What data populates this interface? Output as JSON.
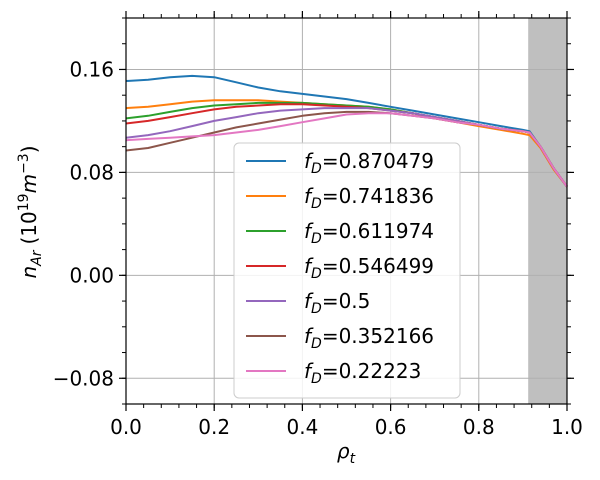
{
  "chart_data": {
    "type": "line",
    "xlabel": "ρ",
    "xlabel_sub": "t",
    "ylabel_main": "n",
    "ylabel_sub": "Ar",
    "ylabel_unit": "(10",
    "ylabel_exp": "19",
    "ylabel_mid": "m",
    "ylabel_exp2": "−3",
    "ylabel_close": ")",
    "xlim": [
      0.0,
      1.0
    ],
    "ylim": [
      -0.1,
      0.2
    ],
    "x_ticks": [
      0.0,
      0.2,
      0.4,
      0.6,
      0.8,
      1.0
    ],
    "x_tick_labels": [
      "0.0",
      "0.2",
      "0.4",
      "0.6",
      "0.8",
      "1.0"
    ],
    "y_ticks": [
      -0.08,
      0.0,
      0.08,
      0.16
    ],
    "y_tick_labels": [
      "−0.08",
      "0.00",
      "0.08",
      "0.16"
    ],
    "grid": true,
    "legend_position": "center",
    "shaded_region": {
      "x_start": 0.912,
      "x_end": 1.0,
      "color": "#bfbfbf"
    },
    "legend_prefix": "f",
    "legend_sub": "D",
    "series": [
      {
        "label": "=0.870479",
        "color": "#1f77b4",
        "x": [
          0.0,
          0.05,
          0.1,
          0.15,
          0.2,
          0.25,
          0.3,
          0.35,
          0.4,
          0.45,
          0.5,
          0.55,
          0.6,
          0.65,
          0.7,
          0.75,
          0.8,
          0.85,
          0.9,
          0.915,
          0.94,
          0.97,
          1.0
        ],
        "y": [
          0.151,
          0.152,
          0.154,
          0.155,
          0.154,
          0.15,
          0.146,
          0.143,
          0.141,
          0.139,
          0.137,
          0.134,
          0.131,
          0.128,
          0.125,
          0.122,
          0.119,
          0.116,
          0.113,
          0.112,
          0.1,
          0.083,
          0.069
        ]
      },
      {
        "label": "=0.741836",
        "color": "#ff7f0e",
        "x": [
          0.0,
          0.05,
          0.1,
          0.15,
          0.2,
          0.25,
          0.3,
          0.35,
          0.4,
          0.45,
          0.5,
          0.55,
          0.6,
          0.65,
          0.7,
          0.75,
          0.8,
          0.85,
          0.9,
          0.915,
          0.94,
          0.97,
          1.0
        ],
        "y": [
          0.13,
          0.131,
          0.133,
          0.135,
          0.136,
          0.136,
          0.136,
          0.135,
          0.134,
          0.133,
          0.132,
          0.131,
          0.129,
          0.126,
          0.122,
          0.119,
          0.116,
          0.113,
          0.11,
          0.109,
          0.099,
          0.082,
          0.069
        ]
      },
      {
        "label": "=0.611974",
        "color": "#2ca02c",
        "x": [
          0.0,
          0.05,
          0.1,
          0.15,
          0.2,
          0.25,
          0.3,
          0.35,
          0.4,
          0.45,
          0.5,
          0.55,
          0.6,
          0.65,
          0.7,
          0.75,
          0.8,
          0.85,
          0.9,
          0.915,
          0.94,
          0.97,
          1.0
        ],
        "y": [
          0.122,
          0.124,
          0.127,
          0.13,
          0.132,
          0.133,
          0.134,
          0.134,
          0.134,
          0.133,
          0.132,
          0.131,
          0.129,
          0.126,
          0.123,
          0.12,
          0.117,
          0.114,
          0.112,
          0.111,
          0.1,
          0.083,
          0.069
        ]
      },
      {
        "label": "=0.546499",
        "color": "#d62728",
        "x": [
          0.0,
          0.05,
          0.1,
          0.15,
          0.2,
          0.25,
          0.3,
          0.35,
          0.4,
          0.45,
          0.5,
          0.55,
          0.6,
          0.65,
          0.7,
          0.75,
          0.8,
          0.85,
          0.9,
          0.915,
          0.94,
          0.97,
          1.0
        ],
        "y": [
          0.118,
          0.12,
          0.123,
          0.126,
          0.129,
          0.131,
          0.132,
          0.133,
          0.133,
          0.132,
          0.131,
          0.13,
          0.128,
          0.126,
          0.123,
          0.12,
          0.117,
          0.114,
          0.112,
          0.111,
          0.1,
          0.083,
          0.069
        ]
      },
      {
        "label": "=0.5",
        "color": "#9467bd",
        "x": [
          0.0,
          0.05,
          0.1,
          0.15,
          0.2,
          0.25,
          0.3,
          0.35,
          0.4,
          0.45,
          0.5,
          0.55,
          0.6,
          0.65,
          0.7,
          0.75,
          0.8,
          0.85,
          0.9,
          0.915,
          0.94,
          0.97,
          1.0
        ],
        "y": [
          0.107,
          0.109,
          0.112,
          0.116,
          0.12,
          0.123,
          0.126,
          0.128,
          0.129,
          0.13,
          0.13,
          0.13,
          0.128,
          0.126,
          0.123,
          0.12,
          0.117,
          0.114,
          0.112,
          0.111,
          0.1,
          0.083,
          0.069
        ]
      },
      {
        "label": "=0.352166",
        "color": "#8c564b",
        "x": [
          0.0,
          0.05,
          0.1,
          0.15,
          0.2,
          0.25,
          0.3,
          0.35,
          0.4,
          0.45,
          0.5,
          0.55,
          0.6,
          0.65,
          0.7,
          0.75,
          0.8,
          0.85,
          0.9,
          0.915,
          0.94,
          0.97,
          1.0
        ],
        "y": [
          0.097,
          0.099,
          0.103,
          0.107,
          0.111,
          0.115,
          0.118,
          0.121,
          0.124,
          0.126,
          0.127,
          0.127,
          0.126,
          0.124,
          0.122,
          0.119,
          0.117,
          0.114,
          0.112,
          0.111,
          0.1,
          0.083,
          0.069
        ]
      },
      {
        "label": "=0.22223",
        "color": "#e377c2",
        "x": [
          0.0,
          0.05,
          0.1,
          0.15,
          0.2,
          0.25,
          0.3,
          0.35,
          0.4,
          0.45,
          0.5,
          0.55,
          0.6,
          0.65,
          0.7,
          0.75,
          0.8,
          0.85,
          0.9,
          0.915,
          0.94,
          0.97,
          1.0
        ],
        "y": [
          0.105,
          0.106,
          0.107,
          0.108,
          0.109,
          0.111,
          0.113,
          0.116,
          0.119,
          0.122,
          0.125,
          0.126,
          0.126,
          0.124,
          0.122,
          0.119,
          0.117,
          0.114,
          0.112,
          0.111,
          0.1,
          0.083,
          0.069
        ]
      }
    ]
  }
}
